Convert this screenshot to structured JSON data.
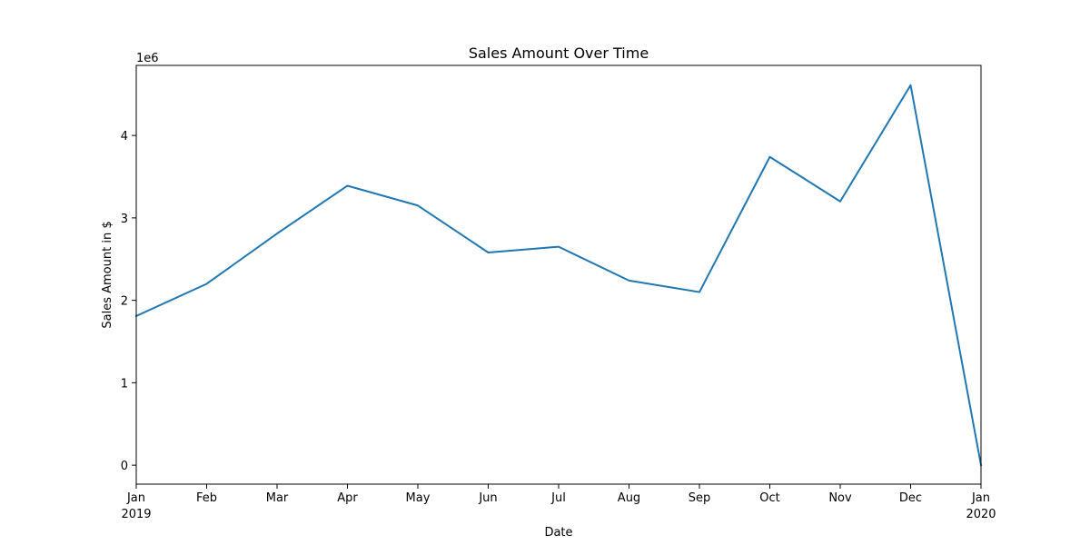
{
  "chart_data": {
    "type": "line",
    "title": "Sales Amount Over Time",
    "xlabel": "Date",
    "ylabel": "Sales Amount in $",
    "y_offset_text": "1e6",
    "y_scale_factor": 1000000,
    "series": [
      {
        "color": "#1f77b4",
        "x": [
          "2019-01",
          "2019-02",
          "2019-03",
          "2019-04",
          "2019-05",
          "2019-06",
          "2019-07",
          "2019-08",
          "2019-09",
          "2019-10",
          "2019-11",
          "2019-12",
          "2020-01"
        ],
        "values": [
          1810000,
          2200000,
          2810000,
          3390000,
          3150000,
          2580000,
          2650000,
          2240000,
          2100000,
          3740000,
          3200000,
          4610000,
          0
        ]
      }
    ],
    "x_ticks": [
      {
        "label": "Jan",
        "sublabel": "2019"
      },
      {
        "label": "Feb"
      },
      {
        "label": "Mar"
      },
      {
        "label": "Apr"
      },
      {
        "label": "May"
      },
      {
        "label": "Jun"
      },
      {
        "label": "Jul"
      },
      {
        "label": "Aug"
      },
      {
        "label": "Sep"
      },
      {
        "label": "Oct"
      },
      {
        "label": "Nov"
      },
      {
        "label": "Dec"
      },
      {
        "label": "Jan",
        "sublabel": "2020"
      }
    ],
    "y_ticks": [
      0,
      1000000,
      2000000,
      3000000,
      4000000
    ],
    "y_tick_labels": [
      "0",
      "1",
      "2",
      "3",
      "4"
    ],
    "ylim": [
      -230000,
      4850000
    ],
    "grid": false,
    "legend": "none"
  }
}
